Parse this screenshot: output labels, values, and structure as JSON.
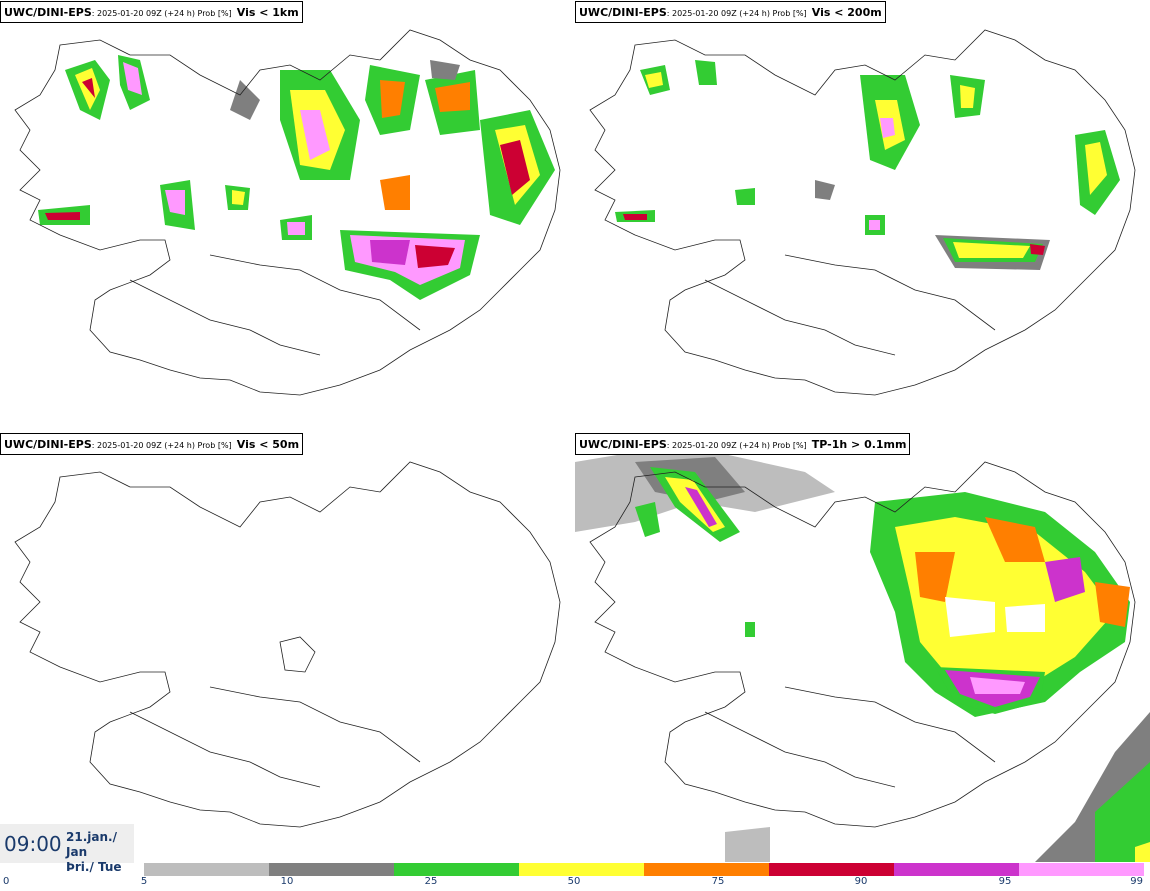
{
  "panels": [
    {
      "model": "UWC/DINI-EPS",
      "meta": ": 2025-01-20 09Z (+24 h) Prob [%]",
      "metric": "Vis < 1km"
    },
    {
      "model": "UWC/DINI-EPS",
      "meta": ": 2025-01-20 09Z (+24 h) Prob [%]",
      "metric": "Vis < 200m"
    },
    {
      "model": "UWC/DINI-EPS",
      "meta": ": 2025-01-20 09Z (+24 h) Prob [%]",
      "metric": "Vis < 50m"
    },
    {
      "model": "UWC/DINI-EPS",
      "meta": ": 2025-01-20 09Z (+24 h) Prob [%]",
      "metric": "TP-1h > 0.1mm"
    }
  ],
  "valid_time": {
    "time": "09:00",
    "date_line1": "21.jan./ Jan",
    "date_line2": "Þri./ Tue"
  },
  "legend": {
    "ticks": [
      "0",
      "5",
      "10",
      "25",
      "50",
      "75",
      "90",
      "95",
      "99"
    ],
    "colors": [
      "#bdbdbd",
      "#7f7f7f",
      "#33cc33",
      "#ffff33",
      "#ff7f00",
      "#cc0033",
      "#cc33cc",
      "#ff99ff"
    ]
  }
}
